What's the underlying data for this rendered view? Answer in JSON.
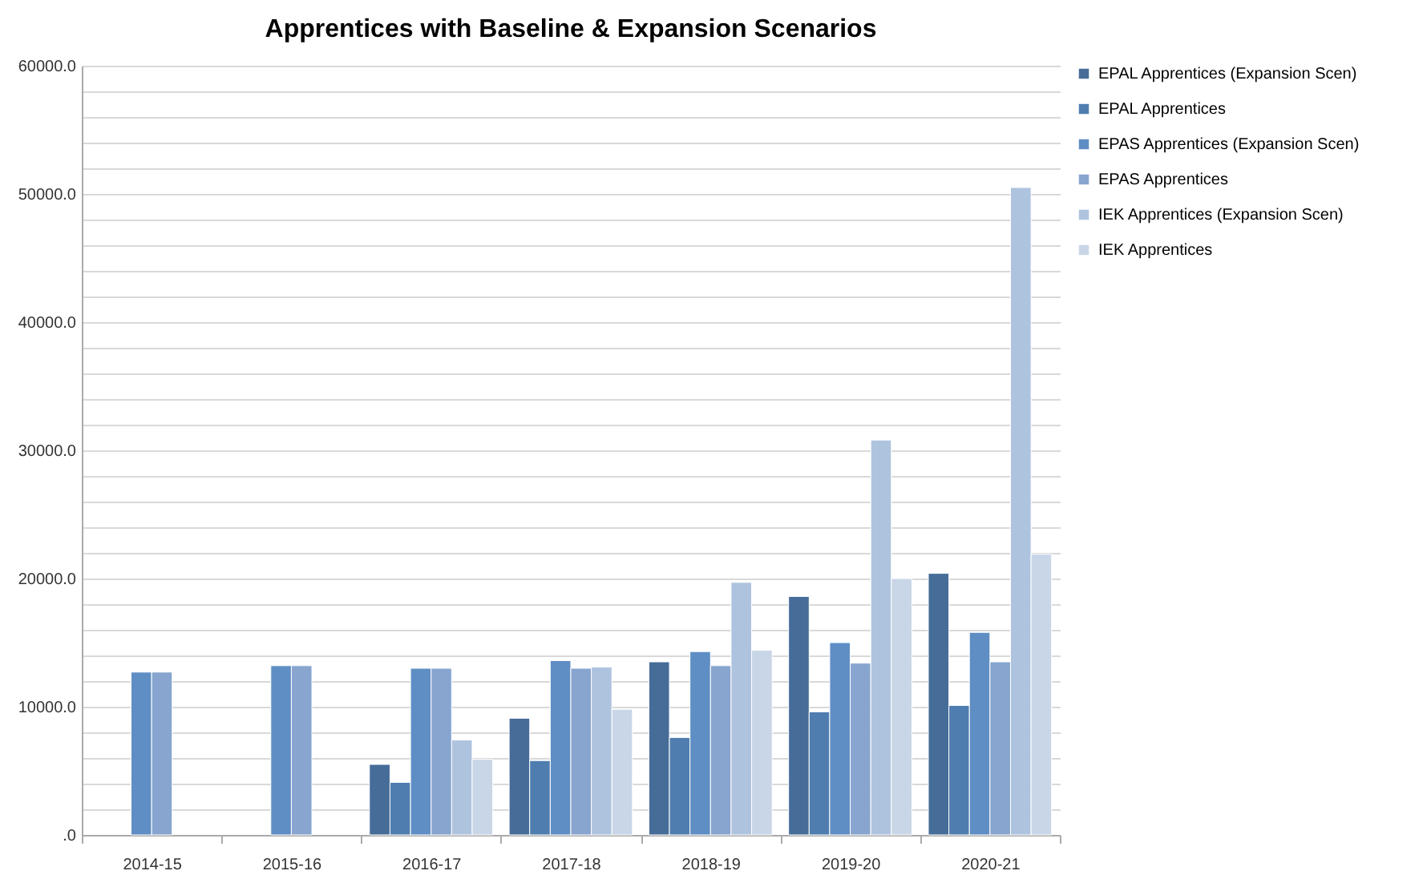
{
  "chart_data": {
    "type": "bar",
    "title": "Apprentices with Baseline & Expansion Scenarios",
    "categories": [
      "2014-15",
      "2015-16",
      "2016-17",
      "2017-18",
      "2018-19",
      "2019-20",
      "2020-21"
    ],
    "series": [
      {
        "name": "EPAL Apprentices (Expansion Scen)",
        "color": "#466c98",
        "values": [
          null,
          null,
          5500,
          9100,
          13500,
          18600,
          20400
        ]
      },
      {
        "name": "EPAL Apprentices",
        "color": "#4f7db0",
        "values": [
          null,
          null,
          4100,
          5800,
          7600,
          9600,
          10100
        ]
      },
      {
        "name": "EPAS Apprentices (Expansion Scen)",
        "color": "#5f8ec4",
        "values": [
          12700,
          13200,
          13000,
          13600,
          14300,
          15000,
          15800
        ]
      },
      {
        "name": "EPAS Apprentices",
        "color": "#87a5cf",
        "values": [
          12700,
          13200,
          13000,
          13000,
          13200,
          13400,
          13500
        ]
      },
      {
        "name": "IEK Apprentices (Expansion Scen)",
        "color": "#aec3de",
        "values": [
          null,
          null,
          7400,
          13100,
          19700,
          30800,
          50500
        ]
      },
      {
        "name": "IEK Apprentices",
        "color": "#c9d6e7",
        "values": [
          null,
          null,
          5900,
          9800,
          14400,
          20000,
          21900
        ]
      }
    ],
    "ylim": [
      0,
      60000
    ],
    "yticks": [
      {
        "value": 0,
        "label": ".0"
      },
      {
        "value": 2000,
        "label": null
      },
      {
        "value": 4000,
        "label": null
      },
      {
        "value": 6000,
        "label": null
      },
      {
        "value": 8000,
        "label": null
      },
      {
        "value": 10000,
        "label": "10000.0"
      },
      {
        "value": 12000,
        "label": null
      },
      {
        "value": 14000,
        "label": null
      },
      {
        "value": 16000,
        "label": null
      },
      {
        "value": 18000,
        "label": null
      },
      {
        "value": 20000,
        "label": "20000.0"
      },
      {
        "value": 22000,
        "label": null
      },
      {
        "value": 24000,
        "label": null
      },
      {
        "value": 26000,
        "label": null
      },
      {
        "value": 28000,
        "label": null
      },
      {
        "value": 30000,
        "label": "30000.0"
      },
      {
        "value": 32000,
        "label": null
      },
      {
        "value": 34000,
        "label": null
      },
      {
        "value": 36000,
        "label": null
      },
      {
        "value": 38000,
        "label": null
      },
      {
        "value": 40000,
        "label": "40000.0"
      },
      {
        "value": 42000,
        "label": null
      },
      {
        "value": 44000,
        "label": null
      },
      {
        "value": 46000,
        "label": null
      },
      {
        "value": 48000,
        "label": null
      },
      {
        "value": 50000,
        "label": "50000.0"
      },
      {
        "value": 52000,
        "label": null
      },
      {
        "value": 54000,
        "label": null
      },
      {
        "value": 56000,
        "label": null
      },
      {
        "value": 58000,
        "label": null
      },
      {
        "value": 60000,
        "label": "60000.0"
      }
    ],
    "grid": true,
    "legend": "right"
  }
}
